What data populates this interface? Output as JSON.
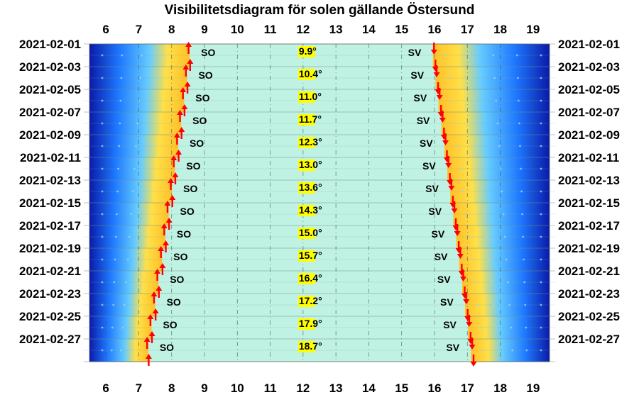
{
  "chart_data": {
    "type": "sun-visibility",
    "title": "Visibilitetsdiagram för solen gällande Östersund",
    "x_range": [
      5.5,
      19.5
    ],
    "hour_ticks": [
      "6",
      "7",
      "8",
      "9",
      "10",
      "11",
      "12",
      "13",
      "14",
      "15",
      "16",
      "17",
      "18",
      "19"
    ],
    "rows": [
      {
        "date": "2021-02-01",
        "sunrise": 8.55,
        "sunset": 15.95,
        "max_altitude": "9.9°",
        "rise_dir": "SO",
        "set_dir": "SV"
      },
      {
        "date": "2021-02-03",
        "sunrise": 8.47,
        "sunset": 16.03,
        "max_altitude": "10.4°",
        "rise_dir": "SO",
        "set_dir": "SV"
      },
      {
        "date": "2021-02-05",
        "sunrise": 8.38,
        "sunset": 16.12,
        "max_altitude": "11.0°",
        "rise_dir": "SO",
        "set_dir": "SV"
      },
      {
        "date": "2021-02-07",
        "sunrise": 8.29,
        "sunset": 16.21,
        "max_altitude": "11.7°",
        "rise_dir": "SO",
        "set_dir": "SV"
      },
      {
        "date": "2021-02-09",
        "sunrise": 8.2,
        "sunset": 16.3,
        "max_altitude": "12.3°",
        "rise_dir": "SO",
        "set_dir": "SV"
      },
      {
        "date": "2021-02-11",
        "sunrise": 8.1,
        "sunset": 16.39,
        "max_altitude": "13.0°",
        "rise_dir": "SO",
        "set_dir": "SV"
      },
      {
        "date": "2021-02-13",
        "sunrise": 8.01,
        "sunset": 16.48,
        "max_altitude": "13.6°",
        "rise_dir": "SO",
        "set_dir": "SV"
      },
      {
        "date": "2021-02-15",
        "sunrise": 7.91,
        "sunset": 16.57,
        "max_altitude": "14.3°",
        "rise_dir": "SO",
        "set_dir": "SV"
      },
      {
        "date": "2021-02-17",
        "sunrise": 7.81,
        "sunset": 16.66,
        "max_altitude": "15.0°",
        "rise_dir": "SO",
        "set_dir": "SV"
      },
      {
        "date": "2021-02-19",
        "sunrise": 7.71,
        "sunset": 16.75,
        "max_altitude": "15.7°",
        "rise_dir": "SO",
        "set_dir": "SV"
      },
      {
        "date": "2021-02-21",
        "sunrise": 7.6,
        "sunset": 16.84,
        "max_altitude": "16.4°",
        "rise_dir": "SO",
        "set_dir": "SV"
      },
      {
        "date": "2021-02-23",
        "sunrise": 7.5,
        "sunset": 16.93,
        "max_altitude": "17.2°",
        "rise_dir": "SO",
        "set_dir": "SV"
      },
      {
        "date": "2021-02-25",
        "sunrise": 7.39,
        "sunset": 17.02,
        "max_altitude": "17.9°",
        "rise_dir": "SO",
        "set_dir": "SV"
      },
      {
        "date": "2021-02-27",
        "sunrise": 7.29,
        "sunset": 17.11,
        "max_altitude": "18.7°",
        "rise_dir": "SO",
        "set_dir": "SV"
      }
    ],
    "grid": true,
    "colors": {
      "daylight": "#c0f2e4",
      "twilight_near": "#ffc028",
      "twilight_mid": "#ffe048",
      "night_light": "#1e78ff",
      "night_dark": "#0a1aa8",
      "arrow": "#ff0000",
      "altitude_highlight": "#ffff00"
    }
  }
}
